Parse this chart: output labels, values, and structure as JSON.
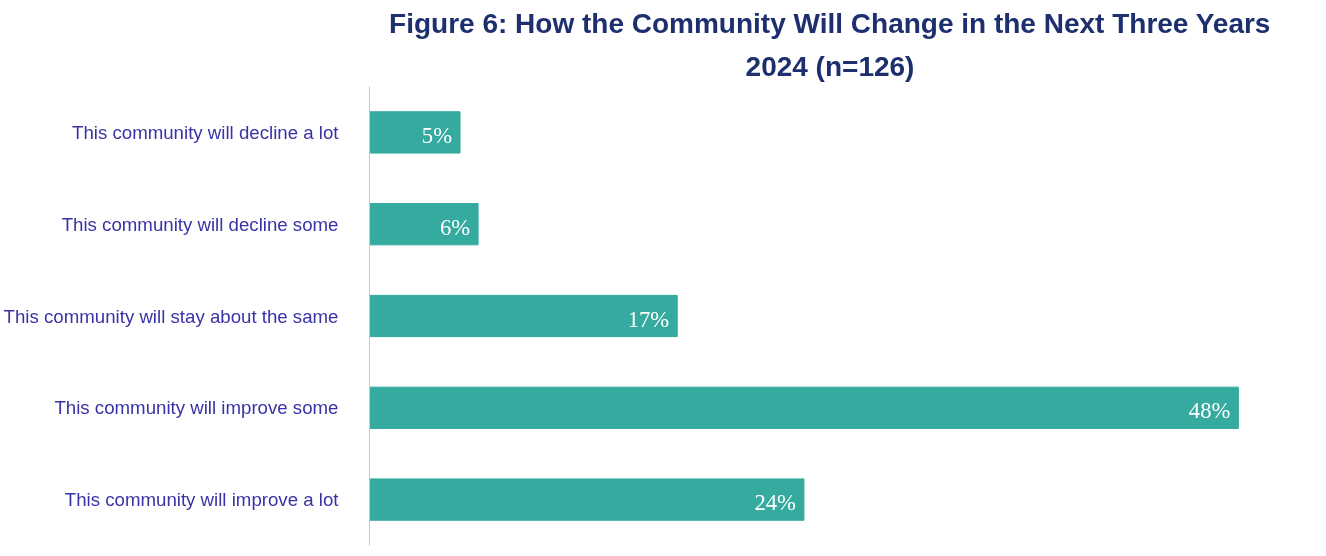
{
  "chart_data": {
    "type": "bar",
    "orientation": "horizontal",
    "title": "Figure 6: How the Community Will Change in the Next Three Years",
    "subtitle": "2024 (n=126)",
    "categories": [
      "This community will decline a lot",
      "This community will decline some",
      "This community will stay about the same",
      "This community will improve some",
      "This community will improve a lot"
    ],
    "values": [
      5,
      6,
      17,
      48,
      24
    ],
    "color": "#35aa9f",
    "value_labels": [
      "5%",
      "6%",
      "17%",
      "48%",
      "24%"
    ],
    "grid": false
  }
}
